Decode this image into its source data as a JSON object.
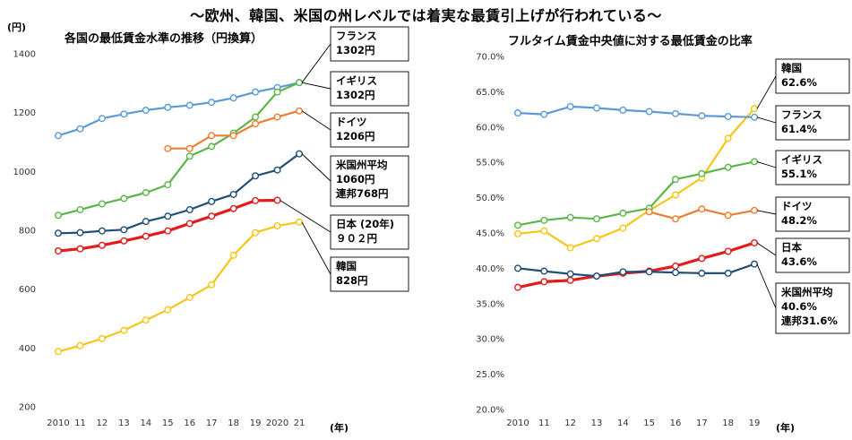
{
  "page_title": "～欧州、韓国、米国の州レベルでは着実な最賃引上げが行われている～",
  "chart_data": [
    {
      "type": "line",
      "title": "各国の最低賃金水準の推移（円換算）",
      "ylabel": "(円)",
      "xlabel": "(年)",
      "categories": [
        "2010",
        "11",
        "12",
        "13",
        "14",
        "15",
        "16",
        "17",
        "18",
        "19",
        "2020",
        "21"
      ],
      "ylim": [
        200,
        1400
      ],
      "yticks": [
        "200",
        "400",
        "600",
        "800",
        "1000",
        "1200",
        "1400"
      ],
      "grid": false,
      "series": [
        {
          "name": "フランス",
          "color": "#5b9bd5",
          "values": [
            1122,
            1145,
            1180,
            1195,
            1208,
            1218,
            1225,
            1235,
            1250,
            1270,
            1285,
            1302
          ]
        },
        {
          "name": "イギリス",
          "color": "#5cb548",
          "values": [
            851,
            870,
            890,
            908,
            928,
            955,
            1052,
            1085,
            1130,
            1185,
            1270,
            1302
          ]
        },
        {
          "name": "ドイツ",
          "color": "#ed7d31",
          "values": [
            null,
            null,
            null,
            null,
            null,
            1078,
            1078,
            1122,
            1122,
            1162,
            1185,
            1206
          ]
        },
        {
          "name": "米国州平均",
          "color": "#1f4e79",
          "values": [
            790,
            792,
            798,
            802,
            830,
            848,
            870,
            898,
            922,
            985,
            1005,
            1060
          ]
        },
        {
          "name": "日本",
          "color": "#e21b1b",
          "values": [
            730,
            737,
            749,
            764,
            780,
            798,
            823,
            848,
            874,
            901,
            902,
            null
          ]
        },
        {
          "name": "韓国",
          "color": "#f5c518",
          "values": [
            388,
            408,
            432,
            460,
            495,
            530,
            572,
            615,
            715,
            792,
            815,
            828
          ]
        }
      ],
      "callouts": [
        {
          "series": "フランス",
          "lines": [
            "フランス",
            "1302円"
          ]
        },
        {
          "series": "イギリス",
          "lines": [
            "イギリス",
            "1302円"
          ]
        },
        {
          "series": "ドイツ",
          "lines": [
            "ドイツ",
            "1206円"
          ]
        },
        {
          "series": "米国州平均",
          "lines": [
            "米国州平均",
            "1060円",
            "連邦768円"
          ]
        },
        {
          "series": "日本",
          "lines": [
            "日本 (20年)",
            "９０２円"
          ]
        },
        {
          "series": "韓国",
          "lines": [
            "韓国",
            "828円"
          ]
        }
      ]
    },
    {
      "type": "line",
      "title": "フルタイム賃金中央値に対する最低賃金の比率",
      "xlabel": "(年)",
      "categories": [
        "2010",
        "11",
        "12",
        "13",
        "14",
        "15",
        "16",
        "17",
        "18",
        "19"
      ],
      "ylim": [
        20,
        70
      ],
      "yticks": [
        "20.0%",
        "25.0%",
        "30.0%",
        "35.0%",
        "40.0%",
        "45.0%",
        "50.0%",
        "55.0%",
        "60.0%",
        "65.0%",
        "70.0%"
      ],
      "grid": false,
      "series": [
        {
          "name": "韓国",
          "color": "#f5c518",
          "values": [
            44.9,
            45.3,
            42.9,
            44.2,
            45.7,
            48.2,
            50.4,
            52.8,
            58.4,
            62.6
          ]
        },
        {
          "name": "フランス",
          "color": "#5b9bd5",
          "values": [
            62.0,
            61.8,
            62.9,
            62.7,
            62.4,
            62.2,
            61.9,
            61.6,
            61.5,
            61.4
          ]
        },
        {
          "name": "イギリス",
          "color": "#5cb548",
          "values": [
            46.1,
            46.8,
            47.2,
            47.0,
            47.8,
            48.5,
            52.6,
            53.4,
            54.3,
            55.1
          ]
        },
        {
          "name": "ドイツ",
          "color": "#ed7d31",
          "values": [
            null,
            null,
            null,
            null,
            null,
            48.0,
            47.0,
            48.4,
            47.5,
            48.2
          ]
        },
        {
          "name": "日本",
          "color": "#e21b1b",
          "values": [
            37.3,
            38.1,
            38.3,
            38.9,
            39.3,
            39.6,
            40.3,
            41.4,
            42.4,
            43.6
          ]
        },
        {
          "name": "米国州平均",
          "color": "#1f4e79",
          "values": [
            40.0,
            39.6,
            39.2,
            38.9,
            39.5,
            39.5,
            39.4,
            39.3,
            39.3,
            40.6
          ]
        }
      ],
      "callouts": [
        {
          "series": "韓国",
          "lines": [
            "韓国",
            "62.6%"
          ]
        },
        {
          "series": "フランス",
          "lines": [
            "フランス",
            "61.4%"
          ]
        },
        {
          "series": "イギリス",
          "lines": [
            "イギリス",
            "55.1%"
          ]
        },
        {
          "series": "ドイツ",
          "lines": [
            "ドイツ",
            "48.2%"
          ]
        },
        {
          "series": "日本",
          "lines": [
            "日本",
            "43.6%"
          ]
        },
        {
          "series": "米国州平均",
          "lines": [
            "米国州平均",
            "40.6%",
            "連邦31.6%"
          ]
        }
      ]
    }
  ]
}
